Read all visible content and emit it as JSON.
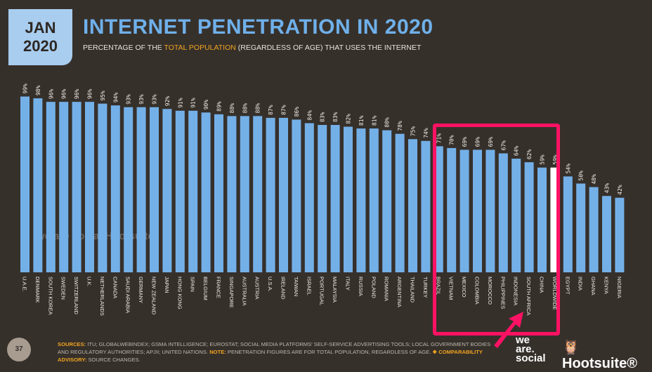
{
  "header": {
    "month": "JAN",
    "year": "2020",
    "title": "INTERNET PENETRATION IN 2020",
    "subtitle_pre": "PERCENTAGE OF THE ",
    "subtitle_hl": "TOTAL POPULATION",
    "subtitle_post": " (REGARDLESS OF AGE) THAT USES THE INTERNET"
  },
  "colors": {
    "bar": "#74b0e8",
    "worldwide": "#ffffff",
    "highlight": "#ff1264",
    "accent": "#f0a420"
  },
  "chart_data": {
    "type": "bar",
    "ylim": [
      0,
      100
    ],
    "grid": false,
    "categories": [
      "U.A.E.",
      "DENMARK",
      "SOUTH KOREA",
      "SWEDEN",
      "SWITZERLAND",
      "U.K.",
      "NETHERLANDS",
      "CANADA",
      "SAUDI ARABIA",
      "GERMANY",
      "NEW ZEALAND",
      "JAPAN",
      "HONG KONG",
      "SPAIN",
      "BELGIUM",
      "FRANCE",
      "SINGAPORE",
      "AUSTRALIA",
      "AUSTRIA",
      "U.S.A.",
      "IRELAND",
      "TAIWAN",
      "ISRAEL",
      "PORTUGAL",
      "MALAYSIA",
      "ITALY",
      "RUSSIA",
      "POLAND",
      "ROMANIA",
      "ARGENTINA",
      "THAILAND",
      "TURKEY",
      "BRAZIL",
      "VIETNAM",
      "MEXICO",
      "COLOMBIA",
      "MOROCCO",
      "PHILIPPINES",
      "INDONESIA",
      "SOUTH AFRICA",
      "CHINA",
      "WORLDWIDE",
      "EGYPT",
      "INDIA",
      "GHANA",
      "KENYA",
      "NIGERIA"
    ],
    "values": [
      99,
      98,
      96,
      96,
      96,
      96,
      95,
      94,
      93,
      93,
      93,
      92,
      91,
      91,
      90,
      89,
      88,
      88,
      88,
      87,
      87,
      86,
      84,
      83,
      83,
      82,
      81,
      81,
      80,
      78,
      75,
      74,
      71,
      70,
      69,
      69,
      69,
      67,
      64,
      62,
      59,
      59,
      54,
      50,
      48,
      43,
      42
    ],
    "highlighted": [
      "BRAZIL",
      "VIETNAM",
      "MEXICO",
      "COLOMBIA",
      "MOROCCO",
      "PHILIPPINES",
      "INDONESIA",
      "SOUTH AFRICA",
      "CHINA"
    ]
  },
  "watermark": "we are social  Hootsuite",
  "footer": {
    "page": "37",
    "sources_label": "SOURCES:",
    "sources": " ITU; GLOBALWEBINDEX; GSMA INTELLIGENCE; EUROSTAT; SOCIAL MEDIA PLATFORMS' SELF-SERVICE ADVERTISING TOOLS; LOCAL GOVERNMENT BODIES AND REGULATORY AUTHORITIES; APJII; UNITED NATIONS. ",
    "note_label": "NOTE:",
    "note": " PENETRATION FIGURES ARE FOR TOTAL POPULATION, REGARDLESS OF AGE. ",
    "adv_label": "❖ COMPARABILITY ADVISORY:",
    "adv": " SOURCE CHANGES."
  },
  "logos": {
    "was": "we are. social",
    "hootsuite": "Hootsuite®"
  }
}
